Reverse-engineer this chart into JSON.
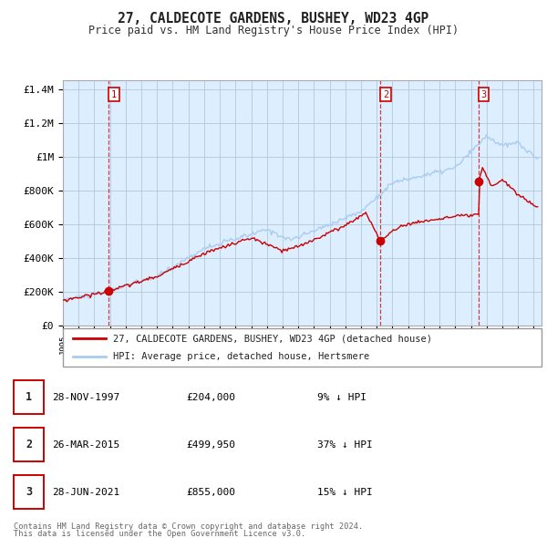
{
  "title": "27, CALDECOTE GARDENS, BUSHEY, WD23 4GP",
  "subtitle": "Price paid vs. HM Land Registry's House Price Index (HPI)",
  "legend_line1": "27, CALDECOTE GARDENS, BUSHEY, WD23 4GP (detached house)",
  "legend_line2": "HPI: Average price, detached house, Hertsmere",
  "footer_line1": "Contains HM Land Registry data © Crown copyright and database right 2024.",
  "footer_line2": "This data is licensed under the Open Government Licence v3.0.",
  "sale_color": "#cc0000",
  "hpi_color": "#aaccee",
  "plot_bg": "#ddeeff",
  "ylim": [
    0,
    1450000
  ],
  "xlim_start": 1995.0,
  "xlim_end": 2025.5,
  "sale_dates": [
    1997.91,
    2015.24,
    2021.49
  ],
  "sale_prices": [
    204000,
    499950,
    855000
  ],
  "sale_labels": [
    "1",
    "2",
    "3"
  ],
  "sale_table": [
    {
      "label": "1",
      "date": "28-NOV-1997",
      "price": "£204,000",
      "pct": "9% ↓ HPI"
    },
    {
      "label": "2",
      "date": "26-MAR-2015",
      "price": "£499,950",
      "pct": "37% ↓ HPI"
    },
    {
      "label": "3",
      "date": "28-JUN-2021",
      "price": "£855,000",
      "pct": "15% ↓ HPI"
    }
  ],
  "yticks": [
    0,
    200000,
    400000,
    600000,
    800000,
    1000000,
    1200000,
    1400000
  ],
  "ytick_labels": [
    "£0",
    "£200K",
    "£400K",
    "£600K",
    "£800K",
    "£1M",
    "£1.2M",
    "£1.4M"
  ]
}
